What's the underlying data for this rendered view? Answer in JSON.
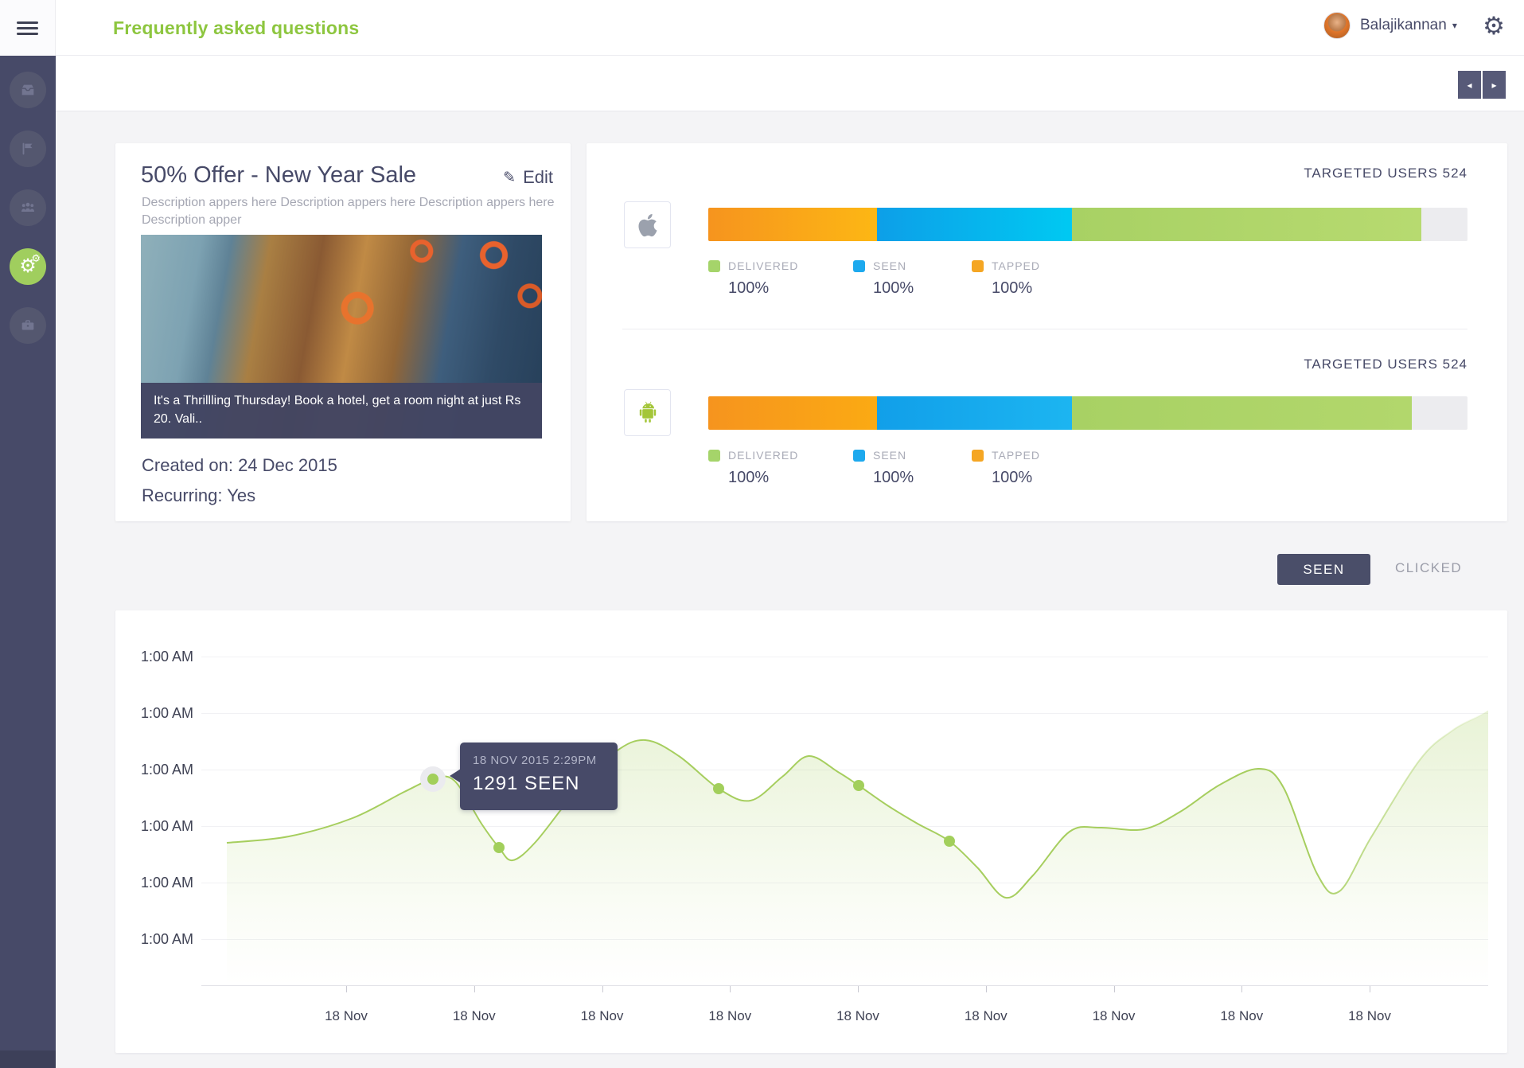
{
  "header": {
    "title": "Frequently asked questions",
    "user_name": "Balajikannan",
    "accent_green": "#8dc63f"
  },
  "sidebar": {
    "bg_color": "#474a68",
    "active_color": "#a0ce5e",
    "items": [
      {
        "icon": "inbox-icon",
        "active": false
      },
      {
        "icon": "flag-icon",
        "active": false
      },
      {
        "icon": "audience-icon",
        "active": false
      },
      {
        "icon": "settings-gears-icon",
        "active": true
      },
      {
        "icon": "briefcase-icon",
        "active": false
      }
    ]
  },
  "pager": {
    "prev": "◂",
    "next": "▸"
  },
  "campaign": {
    "title": "50% Offer - New Year Sale",
    "edit_label": "Edit",
    "description": "Description appers here Description appers here Description appers here Description apper",
    "image_caption": "It's a Thrillling Thursday! Book a hotel, get a room night at just Rs 20. Vali..",
    "created_on": "Created on: 24 Dec 2015",
    "recurring": "Recurring: Yes"
  },
  "platforms": [
    {
      "name": "ios",
      "targeted_label": "TARGETED USERS 524",
      "segments": [
        {
          "name": "tapped",
          "color_start": "#f6941e",
          "color_end": "#fdb714",
          "percent": 22.2
        },
        {
          "name": "seen",
          "color_start": "#0d9fe8",
          "color_end": "#00c9f2",
          "percent": 25.7
        },
        {
          "name": "delivered",
          "color_start": "#a8d164",
          "color_end": "#b7da70",
          "percent": 46.0
        }
      ],
      "track_color": "#ececef",
      "metrics": [
        {
          "label": "DELIVERED",
          "value": "100%",
          "color": "#a5d46a"
        },
        {
          "label": "SEEN",
          "value": "100%",
          "color": "#1da9ee"
        },
        {
          "label": "TAPPED",
          "value": "100%",
          "color": "#f5a623"
        }
      ]
    },
    {
      "name": "android",
      "targeted_label": "TARGETED USERS 524",
      "segments": [
        {
          "name": "tapped",
          "color_start": "#f6941e",
          "color_end": "#fbaa13",
          "percent": 22.2
        },
        {
          "name": "seen",
          "color_start": "#119fe9",
          "color_end": "#1cb5f1",
          "percent": 25.7
        },
        {
          "name": "delivered",
          "color_start": "#a8d164",
          "color_end": "#b2d76c",
          "percent": 44.8
        }
      ],
      "track_color": "#ececef",
      "metrics": [
        {
          "label": "DELIVERED",
          "value": "100%",
          "color": "#a5d46a"
        },
        {
          "label": "SEEN",
          "value": "100%",
          "color": "#1da9ee"
        },
        {
          "label": "TAPPED",
          "value": "100%",
          "color": "#f5a623"
        }
      ]
    }
  ],
  "toggle": {
    "seen": "SEEN",
    "clicked": "CLICKED"
  },
  "chart_data": {
    "type": "area",
    "series_name": "SEEN",
    "line_color": "#a6ce5e",
    "fill_color_top": "rgba(166,206,94,0.25)",
    "grid": true,
    "legend_position": "none",
    "y_ticks": [
      "1:00 AM",
      "1:00 AM",
      "1:00 AM",
      "1:00 AM",
      "1:00 AM",
      "1:00 AM"
    ],
    "x_ticks": [
      "18 Nov",
      "18 Nov",
      "18 Nov",
      "18 Nov",
      "18 Nov",
      "18 Nov",
      "18 Nov",
      "18 Nov",
      "18 Nov"
    ],
    "tooltip": {
      "date": "18 NOV 2015 2:29PM",
      "value": "1291 SEEN"
    },
    "plot_size": [
      1617,
      448
    ],
    "points": [
      [
        32,
        269
      ],
      [
        110,
        261
      ],
      [
        190,
        238
      ],
      [
        255,
        205
      ],
      [
        291,
        189
      ],
      [
        318,
        191
      ],
      [
        352,
        245
      ],
      [
        374,
        275
      ],
      [
        391,
        291
      ],
      [
        420,
        268
      ],
      [
        470,
        205
      ],
      [
        520,
        155
      ],
      [
        558,
        140
      ],
      [
        600,
        160
      ],
      [
        650,
        201
      ],
      [
        690,
        216
      ],
      [
        730,
        186
      ],
      [
        763,
        160
      ],
      [
        800,
        180
      ],
      [
        826,
        197
      ],
      [
        862,
        222
      ],
      [
        900,
        245
      ],
      [
        940,
        267
      ],
      [
        975,
        300
      ],
      [
        1011,
        338
      ],
      [
        1045,
        310
      ],
      [
        1091,
        255
      ],
      [
        1130,
        250
      ],
      [
        1184,
        252
      ],
      [
        1230,
        230
      ],
      [
        1280,
        196
      ],
      [
        1329,
        176
      ],
      [
        1360,
        200
      ],
      [
        1402,
        308
      ],
      [
        1430,
        330
      ],
      [
        1470,
        262
      ],
      [
        1531,
        165
      ],
      [
        1572,
        128
      ],
      [
        1605,
        110
      ],
      [
        1617,
        103
      ]
    ],
    "markers": [
      [
        291,
        189
      ],
      [
        374,
        275
      ],
      [
        650,
        201
      ],
      [
        826,
        197
      ],
      [
        940,
        267
      ]
    ],
    "active_marker": [
      291,
      189
    ]
  }
}
